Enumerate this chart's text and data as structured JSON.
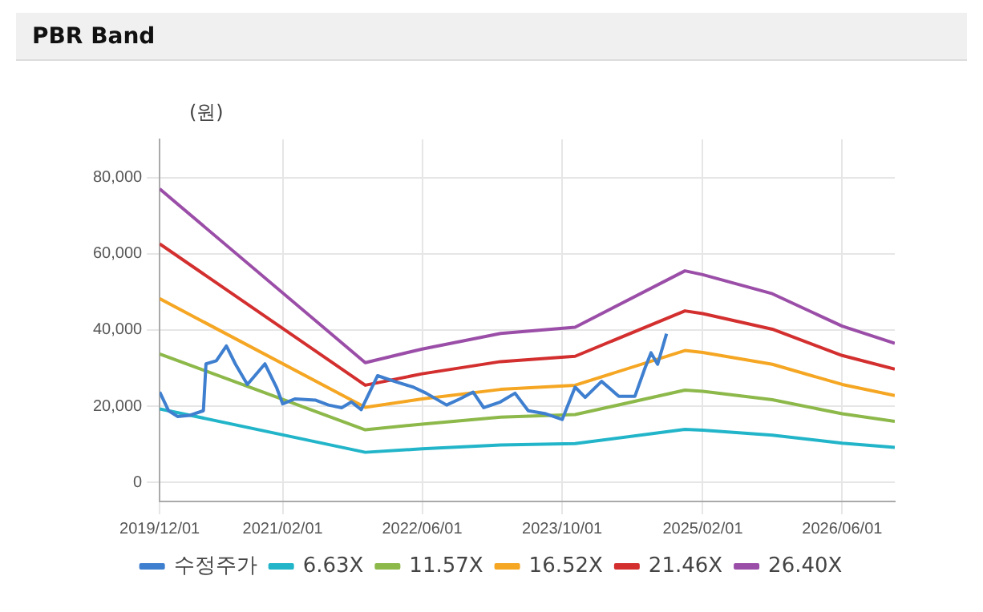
{
  "chart_data": {
    "type": "line",
    "title": "PBR Band",
    "ylabel": "(원)",
    "xlim": [
      "2019-12-01",
      "2026-12-01"
    ],
    "xticks": [
      {
        "value": "2019-12-01",
        "label": "2019/12/01"
      },
      {
        "value": "2021-02-01",
        "label": "2021/02/01"
      },
      {
        "value": "2022-06-01",
        "label": "2022/06/01"
      },
      {
        "value": "2023-10-01",
        "label": "2023/10/01"
      },
      {
        "value": "2025-02-01",
        "label": "2025/02/01"
      },
      {
        "value": "2026-06-01",
        "label": "2026/06/01"
      }
    ],
    "ylim": [
      -5000,
      90000
    ],
    "yticks": [
      {
        "value": 0,
        "label": "0"
      },
      {
        "value": 20000,
        "label": "20,000"
      },
      {
        "value": 40000,
        "label": "40,000"
      },
      {
        "value": 60000,
        "label": "60,000"
      },
      {
        "value": 80000,
        "label": "80,000"
      }
    ],
    "grid": true,
    "legend": "bottom",
    "marker": "none",
    "line_style": "solid",
    "series": [
      {
        "name": "수정주가",
        "color": "#3f7fcf",
        "x": [
          "2019-12-01",
          "2020-01-01",
          "2020-02-01",
          "2020-03-15",
          "2020-05-01",
          "2020-05-10",
          "2020-06-15",
          "2020-07-20",
          "2020-08-20",
          "2020-10-01",
          "2020-12-01",
          "2021-01-10",
          "2021-02-01",
          "2021-03-15",
          "2021-05-25",
          "2021-07-10",
          "2021-08-25",
          "2021-09-28",
          "2021-11-01",
          "2021-12-28",
          "2022-02-25",
          "2022-05-01",
          "2022-06-15",
          "2022-08-25",
          "2022-10-10",
          "2022-11-25",
          "2023-01-01",
          "2023-02-28",
          "2023-04-20",
          "2023-06-05",
          "2023-08-05",
          "2023-10-01",
          "2023-11-15",
          "2023-12-20",
          "2024-02-15",
          "2024-04-15",
          "2024-06-10",
          "2024-07-15",
          "2024-08-05",
          "2024-08-28",
          "2024-09-28"
        ],
        "values": [
          23700,
          18800,
          17300,
          17600,
          18800,
          31100,
          31900,
          35800,
          31100,
          25700,
          31100,
          25000,
          20600,
          21900,
          21600,
          20300,
          19600,
          21100,
          19100,
          28000,
          26500,
          25000,
          23400,
          20300,
          21900,
          23700,
          19600,
          21100,
          23400,
          18800,
          18000,
          16500,
          25000,
          22300,
          26500,
          22600,
          22600,
          30000,
          34000,
          31000,
          39000
        ]
      },
      {
        "name": "6.63X",
        "color": "#22b5c9",
        "values": [
          19300,
          7900,
          8800,
          9800,
          10200,
          13900,
          13700,
          12400,
          10300,
          9200
        ]
      },
      {
        "name": "11.57X",
        "color": "#8db84a",
        "values": [
          33700,
          13800,
          15300,
          17100,
          17800,
          24200,
          23900,
          21700,
          18000,
          16000
        ]
      },
      {
        "name": "16.52X",
        "color": "#f5a623",
        "values": [
          48200,
          19700,
          21900,
          24400,
          25500,
          34600,
          34100,
          31000,
          25700,
          22800
        ]
      },
      {
        "name": "21.46X",
        "color": "#d32f2f",
        "values": [
          62600,
          25500,
          28500,
          31700,
          33100,
          45000,
          44300,
          40200,
          33300,
          29700
        ]
      },
      {
        "name": "26.40X",
        "color": "#9b4ea8",
        "values": [
          77000,
          31400,
          35000,
          39100,
          40700,
          55500,
          54500,
          49500,
          41000,
          36500
        ]
      }
    ],
    "x": [
      "2019-12-01",
      "2021-11-15",
      "2022-06-01",
      "2023-03-01",
      "2023-11-15",
      "2024-12-01",
      "2025-02-01",
      "2025-10-01",
      "2026-06-01",
      "2026-12-01"
    ]
  }
}
